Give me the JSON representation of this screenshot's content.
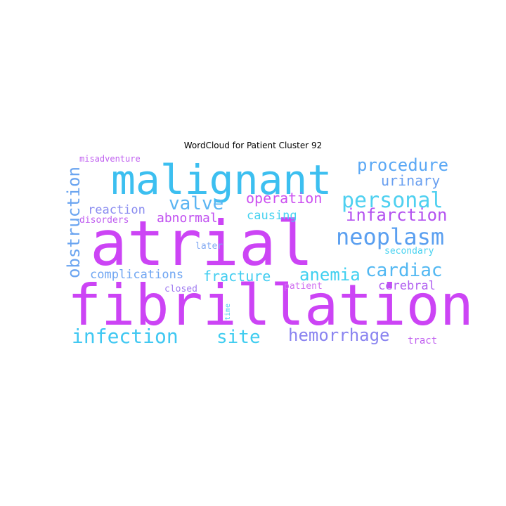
{
  "chart_data": {
    "type": "wordcloud",
    "title": "WordCloud for Patient Cluster 92",
    "words": [
      {
        "text": "atrial",
        "weight": 100,
        "color": "#cc44f5"
      },
      {
        "text": "fibrillation",
        "weight": 98,
        "color": "#cc44f5"
      },
      {
        "text": "malignant",
        "weight": 66,
        "color": "#3cbff0"
      },
      {
        "text": "neoplasm",
        "weight": 36,
        "color": "#5a9ff0"
      },
      {
        "text": "personal",
        "weight": 30,
        "color": "#4ed0f0"
      },
      {
        "text": "procedure",
        "weight": 26,
        "color": "#5aa8f5"
      },
      {
        "text": "infarction",
        "weight": 24,
        "color": "#b452f0"
      },
      {
        "text": "infection",
        "weight": 28,
        "color": "#40c8f2"
      },
      {
        "text": "hemorrhage",
        "weight": 26,
        "color": "#8a84f0"
      },
      {
        "text": "cardiac",
        "weight": 26,
        "color": "#52b8f2"
      },
      {
        "text": "site",
        "weight": 26,
        "color": "#40cdf0"
      },
      {
        "text": "obstruction",
        "weight": 24,
        "color": "#6aa4f0"
      },
      {
        "text": "valve",
        "weight": 24,
        "color": "#5ab4f2"
      },
      {
        "text": "anemia",
        "weight": 24,
        "color": "#40d0f0"
      },
      {
        "text": "urinary",
        "weight": 20,
        "color": "#6aa0f0"
      },
      {
        "text": "operation",
        "weight": 20,
        "color": "#cc50f0"
      },
      {
        "text": "fracture",
        "weight": 20,
        "color": "#42cdf0"
      },
      {
        "text": "abnormal",
        "weight": 18,
        "color": "#c050f0"
      },
      {
        "text": "reaction",
        "weight": 17,
        "color": "#8a8cf0"
      },
      {
        "text": "causing",
        "weight": 16,
        "color": "#46d2f0"
      },
      {
        "text": "complications",
        "weight": 17,
        "color": "#70a6f2"
      },
      {
        "text": "cerebral",
        "weight": 16,
        "color": "#b060f0"
      },
      {
        "text": "secondary",
        "weight": 12,
        "color": "#48d2f0"
      },
      {
        "text": "disorders",
        "weight": 13,
        "color": "#c060f0"
      },
      {
        "text": "misadventure",
        "weight": 11,
        "color": "#c060f0"
      },
      {
        "text": "closed",
        "weight": 12,
        "color": "#a07cf0"
      },
      {
        "text": "patient",
        "weight": 12,
        "color": "#d070f0"
      },
      {
        "text": "later",
        "weight": 12,
        "color": "#80a8f2"
      },
      {
        "text": "tract",
        "weight": 13,
        "color": "#c060f0"
      },
      {
        "text": "time",
        "weight": 9,
        "color": "#4ed2f0"
      }
    ]
  }
}
